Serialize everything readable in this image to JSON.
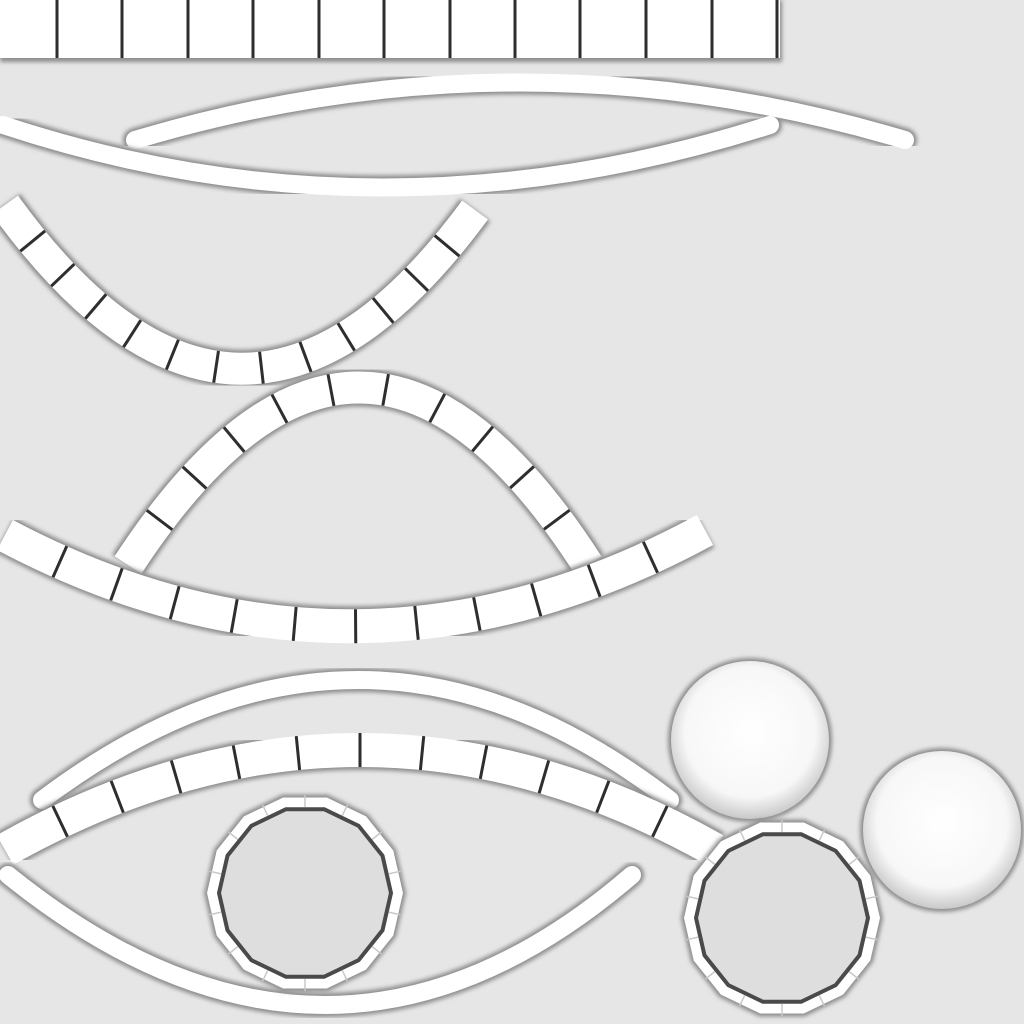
{
  "colors": {
    "background": "#e6e6e6",
    "strip_fill": "#ffffff",
    "strip_shadow": "#8c8c8c",
    "segment_line": "#2e2e2e",
    "disk_fill": "#fafafa",
    "ring_inner": "#dedede"
  }
}
